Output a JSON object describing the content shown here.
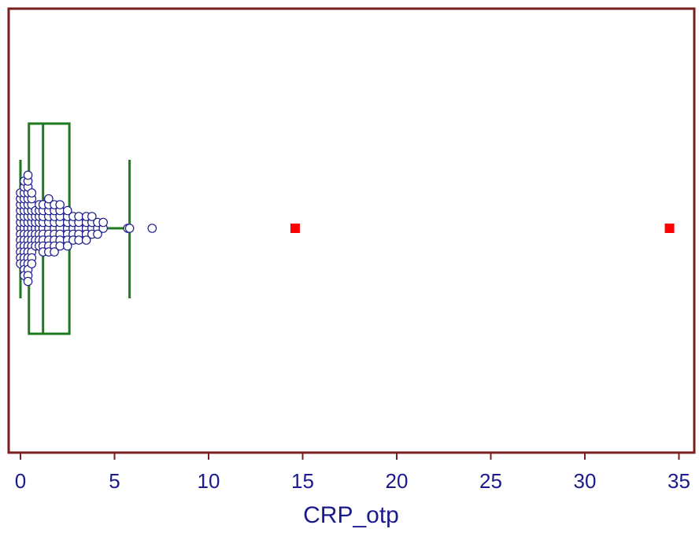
{
  "chart_data": {
    "type": "box-and-whisker with dot plot",
    "orientation": "horizontal",
    "xlabel": "CRP_otp",
    "xlim": [
      -0.7,
      36
    ],
    "x_ticks": [
      0,
      5,
      10,
      15,
      20,
      25,
      30,
      35
    ],
    "x_tick_labels": [
      "0",
      "5",
      "10",
      "15",
      "20",
      "25",
      "30",
      "35"
    ],
    "box": {
      "whisker_low": 0,
      "q1": 0.45,
      "median": 1.2,
      "q3": 2.6,
      "whisker_high": 5.8
    },
    "outliers": [
      14.6,
      34.5
    ],
    "points": [
      {
        "x": 0.0,
        "n": 13
      },
      {
        "x": 0.2,
        "n": 17
      },
      {
        "x": 0.4,
        "n": 19
      },
      {
        "x": 0.6,
        "n": 13
      },
      {
        "x": 0.8,
        "n": 7
      },
      {
        "x": 1.0,
        "n": 8
      },
      {
        "x": 1.2,
        "n": 9
      },
      {
        "x": 1.5,
        "n": 10
      },
      {
        "x": 1.8,
        "n": 9
      },
      {
        "x": 2.1,
        "n": 8
      },
      {
        "x": 2.5,
        "n": 7
      },
      {
        "x": 2.8,
        "n": 5
      },
      {
        "x": 3.1,
        "n": 5
      },
      {
        "x": 3.5,
        "n": 5
      },
      {
        "x": 3.8,
        "n": 4
      },
      {
        "x": 4.1,
        "n": 3
      },
      {
        "x": 4.4,
        "n": 2
      },
      {
        "x": 5.7,
        "n": 1
      },
      {
        "x": 5.8,
        "n": 1
      },
      {
        "x": 7.0,
        "n": 1
      }
    ],
    "colors": {
      "frame": "#7a1f1f",
      "box": "#1f7a1f",
      "dot_stroke": "#1a1a8c",
      "dot_fill": "#ffffff",
      "outlier": "#ff0000",
      "text": "#1a1a8c"
    }
  }
}
